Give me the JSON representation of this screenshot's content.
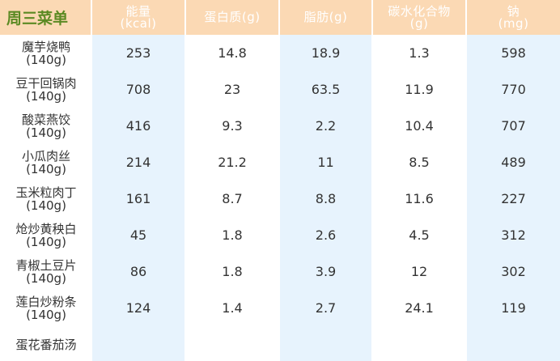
{
  "title": "周三菜单",
  "headers": [
    {
      "line1": "能量",
      "line2": "(kcal)"
    },
    {
      "line1": "蛋白质(g)",
      "line2": ""
    },
    {
      "line1": "脂肪(g)",
      "line2": ""
    },
    {
      "line1": "碳水化合物",
      "line2": "(g)"
    },
    {
      "line1": "钠",
      "line2": "(mg)"
    }
  ],
  "rows": [
    {
      "name": "魔芋烧鸭",
      "weight": "(140g)",
      "energy": "253",
      "protein": "14.8",
      "fat": "18.9",
      "carb": "1.3",
      "sodium": "598"
    },
    {
      "name": "豆干回锅肉",
      "weight": "(140g)",
      "energy": "708",
      "protein": "23",
      "fat": "63.5",
      "carb": "11.9",
      "sodium": "770"
    },
    {
      "name": "酸菜燕饺",
      "weight": "(140g)",
      "energy": "416",
      "protein": "9.3",
      "fat": "2.2",
      "carb": "10.4",
      "sodium": "707"
    },
    {
      "name": "小瓜肉丝",
      "weight": "(140g)",
      "energy": "214",
      "protein": "21.2",
      "fat": "11",
      "carb": "8.5",
      "sodium": "489"
    },
    {
      "name": "玉米粒肉丁",
      "weight": "(140g)",
      "energy": "161",
      "protein": "8.7",
      "fat": "8.8",
      "carb": "11.6",
      "sodium": "227"
    },
    {
      "name": "炝炒黄秧白",
      "weight": "(140g)",
      "energy": "45",
      "protein": "1.8",
      "fat": "2.6",
      "carb": "4.5",
      "sodium": "312"
    },
    {
      "name": "青椒土豆片",
      "weight": "(140g)",
      "energy": "86",
      "protein": "1.8",
      "fat": "3.9",
      "carb": "12",
      "sodium": "302"
    },
    {
      "name": "莲白炒粉条",
      "weight": "(140g)",
      "energy": "124",
      "protein": "1.4",
      "fat": "2.7",
      "carb": "24.1",
      "sodium": "119"
    },
    {
      "name": "蛋花番茄汤",
      "weight": "",
      "energy": "",
      "protein": "",
      "fat": "",
      "carb": "",
      "sodium": ""
    }
  ]
}
